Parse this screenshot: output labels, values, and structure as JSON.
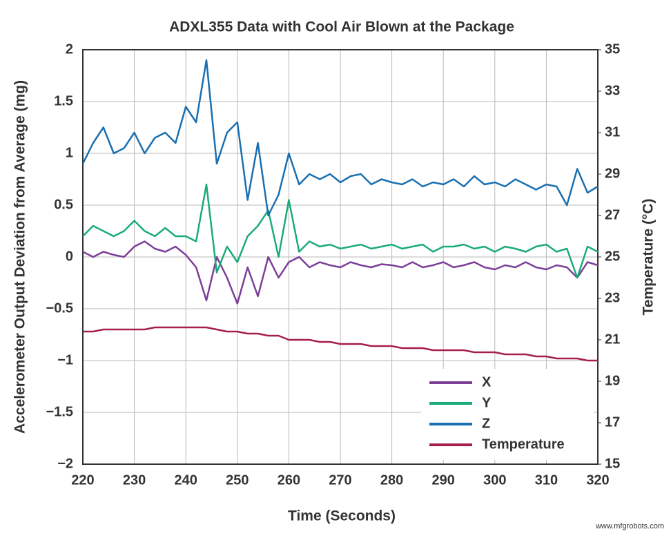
{
  "chart_data": {
    "type": "line",
    "title": "ADXL355 Data with Cool Air Blown at the Package",
    "x_label": "Time (Seconds)",
    "y_label": "Accelerometer Output Deviation from Average (mg)",
    "y2_label": "Temperature (°C)",
    "x": [
      220,
      222,
      224,
      226,
      228,
      230,
      232,
      234,
      236,
      238,
      240,
      242,
      244,
      246,
      248,
      250,
      252,
      254,
      256,
      258,
      260,
      262,
      264,
      266,
      268,
      270,
      272,
      274,
      276,
      278,
      280,
      282,
      284,
      286,
      288,
      290,
      292,
      294,
      296,
      298,
      300,
      302,
      304,
      306,
      308,
      310,
      312,
      314,
      316,
      318,
      320
    ],
    "xlim": [
      220,
      320
    ],
    "xticks": [
      220,
      230,
      240,
      250,
      260,
      270,
      280,
      290,
      300,
      310,
      320
    ],
    "ylim": [
      -2,
      2
    ],
    "yticks": [
      {
        "value": -2,
        "label": "−2"
      },
      {
        "value": -1.5,
        "label": "−1.5"
      },
      {
        "value": -1,
        "label": "−1"
      },
      {
        "value": -0.5,
        "label": "−0.5"
      },
      0,
      0.5,
      1,
      1.5,
      2
    ],
    "y2lim": [
      15,
      35
    ],
    "y2ticks": [
      15,
      17,
      19,
      21,
      23,
      25,
      27,
      29,
      31,
      33,
      35
    ],
    "grid": true,
    "legend": "lower right",
    "series": [
      {
        "name": "X",
        "color": "#7b3f98",
        "values": [
          0.05,
          0.0,
          0.05,
          0.02,
          0.0,
          0.1,
          0.15,
          0.08,
          0.05,
          0.1,
          0.02,
          -0.1,
          -0.42,
          0.0,
          -0.2,
          -0.45,
          -0.1,
          -0.38,
          0.0,
          -0.2,
          -0.05,
          0.0,
          -0.1,
          -0.05,
          -0.08,
          -0.1,
          -0.05,
          -0.08,
          -0.1,
          -0.07,
          -0.08,
          -0.1,
          -0.05,
          -0.1,
          -0.08,
          -0.05,
          -0.1,
          -0.08,
          -0.05,
          -0.1,
          -0.12,
          -0.08,
          -0.1,
          -0.05,
          -0.1,
          -0.12,
          -0.08,
          -0.1,
          -0.2,
          -0.05,
          -0.08
        ]
      },
      {
        "name": "Y",
        "color": "#1aab7a",
        "values": [
          0.2,
          0.3,
          0.25,
          0.2,
          0.25,
          0.35,
          0.25,
          0.2,
          0.28,
          0.2,
          0.2,
          0.15,
          0.7,
          -0.15,
          0.1,
          -0.05,
          0.2,
          0.3,
          0.45,
          0.0,
          0.55,
          0.05,
          0.15,
          0.1,
          0.12,
          0.08,
          0.1,
          0.12,
          0.08,
          0.1,
          0.12,
          0.08,
          0.1,
          0.12,
          0.05,
          0.1,
          0.1,
          0.12,
          0.08,
          0.1,
          0.05,
          0.1,
          0.08,
          0.05,
          0.1,
          0.12,
          0.05,
          0.08,
          -0.2,
          0.1,
          0.05
        ]
      },
      {
        "name": "Z",
        "color": "#1a6fb0",
        "values": [
          0.9,
          1.1,
          1.25,
          1.0,
          1.05,
          1.2,
          1.0,
          1.15,
          1.2,
          1.1,
          1.45,
          1.3,
          1.9,
          0.9,
          1.2,
          1.3,
          0.55,
          1.1,
          0.4,
          0.6,
          1.0,
          0.7,
          0.8,
          0.75,
          0.8,
          0.72,
          0.78,
          0.8,
          0.7,
          0.75,
          0.72,
          0.7,
          0.75,
          0.68,
          0.72,
          0.7,
          0.75,
          0.68,
          0.78,
          0.7,
          0.72,
          0.68,
          0.75,
          0.7,
          0.65,
          0.7,
          0.68,
          0.5,
          0.85,
          0.62,
          0.68
        ]
      },
      {
        "name": "Temperature",
        "color": "#a61f4a",
        "axis": "y2",
        "values": [
          21.4,
          21.4,
          21.5,
          21.5,
          21.5,
          21.5,
          21.5,
          21.6,
          21.6,
          21.6,
          21.6,
          21.6,
          21.6,
          21.5,
          21.4,
          21.4,
          21.3,
          21.3,
          21.2,
          21.2,
          21.0,
          21.0,
          21.0,
          20.9,
          20.9,
          20.8,
          20.8,
          20.8,
          20.7,
          20.7,
          20.7,
          20.6,
          20.6,
          20.6,
          20.5,
          20.5,
          20.5,
          20.5,
          20.4,
          20.4,
          20.4,
          20.3,
          20.3,
          20.3,
          20.2,
          20.2,
          20.1,
          20.1,
          20.1,
          20.0,
          20.0
        ]
      }
    ]
  },
  "watermark": "www.mfgrobots.com"
}
